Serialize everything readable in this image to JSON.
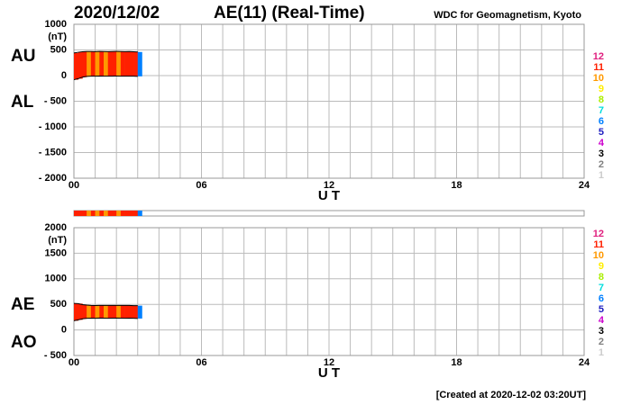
{
  "header": {
    "date": "2020/12/02",
    "title": "AE(11) (Real-Time)",
    "source": "WDC for Geomagnetism, Kyoto"
  },
  "legend": [
    {
      "value": 12,
      "color": "#e0207f"
    },
    {
      "value": 11,
      "color": "#ff2000"
    },
    {
      "value": 10,
      "color": "#ff9900"
    },
    {
      "value": 9,
      "color": "#ffee00"
    },
    {
      "value": 8,
      "color": "#aaee00"
    },
    {
      "value": 7,
      "color": "#00dddd"
    },
    {
      "value": 6,
      "color": "#0080ff"
    },
    {
      "value": 5,
      "color": "#2020c0"
    },
    {
      "value": 4,
      "color": "#cc00cc"
    },
    {
      "value": 3,
      "color": "#000000"
    },
    {
      "value": 2,
      "color": "#808080"
    },
    {
      "value": 1,
      "color": "#cccccc"
    }
  ],
  "chart_data": [
    {
      "type": "band",
      "y_unit": "(nT)",
      "xlabel": "U T",
      "x": [
        0,
        0.2,
        0.4,
        0.6,
        0.8,
        1.0,
        1.2,
        1.4,
        1.6,
        1.8,
        2.0,
        2.2,
        2.4,
        2.6,
        2.8,
        3.0
      ],
      "x_step": 0.2,
      "stations": [
        11,
        11,
        11,
        10,
        11,
        10,
        11,
        10,
        11,
        11,
        10,
        11,
        11,
        11,
        11,
        6
      ],
      "series": [
        {
          "name": "AU",
          "values": [
            440,
            455,
            465,
            470,
            470,
            468,
            472,
            470,
            468,
            470,
            472,
            470,
            468,
            470,
            465,
            460
          ]
        },
        {
          "name": "AL",
          "values": [
            -80,
            -60,
            -30,
            -15,
            -10,
            -10,
            -8,
            -10,
            -12,
            -10,
            -8,
            -10,
            -12,
            -10,
            -10,
            -15
          ]
        }
      ],
      "xlim": [
        0,
        24
      ],
      "xticks": [
        {
          "value": 0,
          "label": "00"
        },
        {
          "value": 6,
          "label": "06"
        },
        12,
        18,
        24
      ],
      "x_grid_step": 1,
      "ylim": [
        -2000,
        1000
      ],
      "yticks": [
        {
          "value": -2000,
          "label": "- 2000"
        },
        {
          "value": -1500,
          "label": "- 1500"
        },
        {
          "value": -1000,
          "label": "- 1000"
        },
        {
          "value": -500,
          "label": "- 500"
        },
        0,
        500,
        1000
      ],
      "grid": true
    },
    {
      "type": "band",
      "y_unit": "(nT)",
      "xlabel": "U T",
      "station_strip": true,
      "x": [
        0,
        0.2,
        0.4,
        0.6,
        0.8,
        1.0,
        1.2,
        1.4,
        1.6,
        1.8,
        2.0,
        2.2,
        2.4,
        2.6,
        2.8,
        3.0
      ],
      "x_step": 0.2,
      "stations": [
        11,
        11,
        11,
        10,
        11,
        10,
        11,
        10,
        11,
        11,
        10,
        11,
        11,
        11,
        11,
        6
      ],
      "series": [
        {
          "name": "AE",
          "values": [
            520,
            515,
            495,
            485,
            480,
            478,
            480,
            480,
            480,
            480,
            480,
            480,
            480,
            480,
            475,
            475
          ]
        },
        {
          "name": "AO",
          "values": [
            180,
            198,
            218,
            228,
            230,
            229,
            232,
            230,
            228,
            230,
            232,
            230,
            228,
            230,
            228,
            223
          ]
        }
      ],
      "xlim": [
        0,
        24
      ],
      "xticks": [
        {
          "value": 0,
          "label": "00"
        },
        {
          "value": 6,
          "label": "06"
        },
        12,
        18,
        24
      ],
      "x_grid_step": 1,
      "ylim": [
        -500,
        2000
      ],
      "yticks": [
        {
          "value": -500,
          "label": "- 500"
        },
        0,
        500,
        1000,
        1500,
        2000
      ],
      "grid": true
    }
  ],
  "footer": "[Created at 2020-12-02 03:20UT]"
}
